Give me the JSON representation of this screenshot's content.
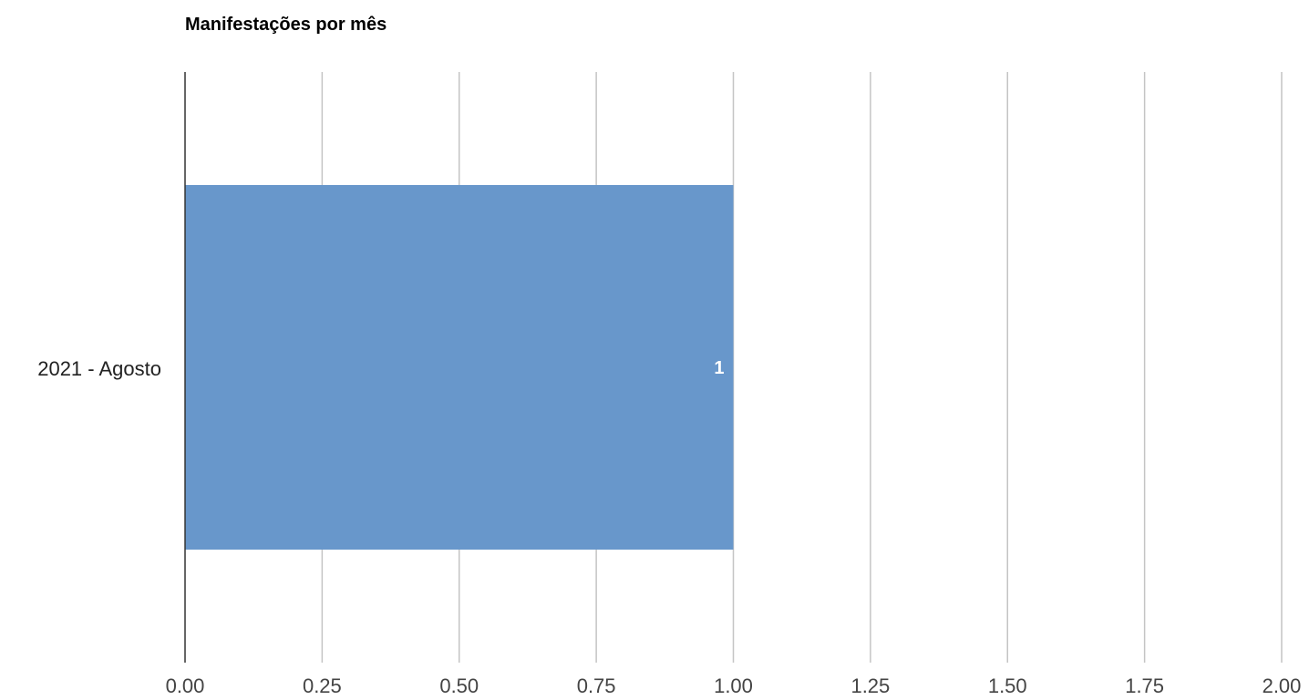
{
  "chart_data": {
    "type": "bar",
    "orientation": "horizontal",
    "title": "Manifestações por mês",
    "categories": [
      "2021 - Agosto"
    ],
    "values": [
      1
    ],
    "data_labels": [
      "1"
    ],
    "xlim": [
      0,
      2
    ],
    "x_ticks": [
      "0.00",
      "0.25",
      "0.50",
      "0.75",
      "1.00",
      "1.25",
      "1.50",
      "1.75",
      "2.00"
    ],
    "x_tick_values": [
      0,
      0.25,
      0.5,
      0.75,
      1,
      1.25,
      1.5,
      1.75,
      2
    ],
    "grid": true,
    "legend": "none",
    "colors": {
      "bar": "#6897cb",
      "grid": "#c4c4c4",
      "axis": "#333333"
    }
  }
}
